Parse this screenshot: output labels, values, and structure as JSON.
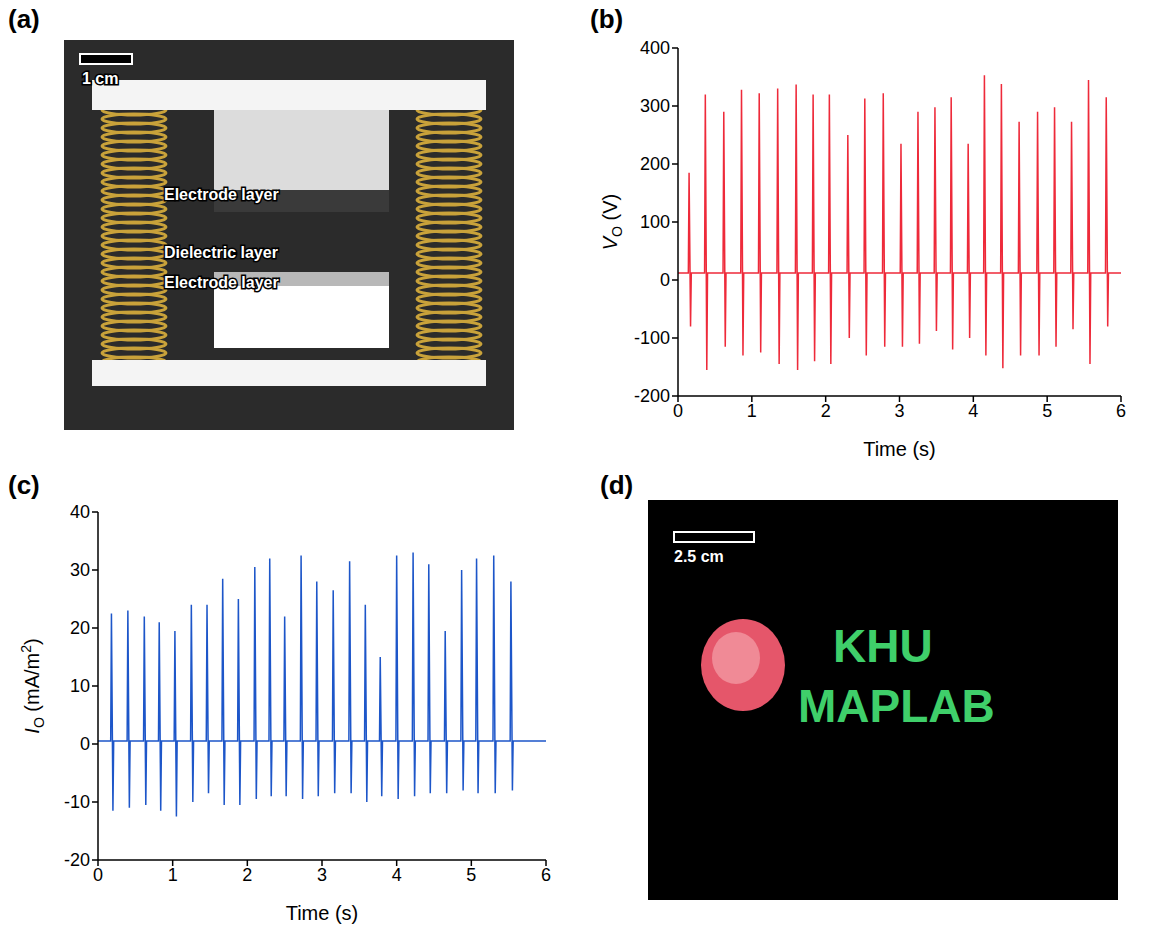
{
  "chart_data": [
    {
      "label": "(b)",
      "type": "line",
      "x_label": "Time (s)",
      "y_label": [
        "V",
        "O",
        " (V)"
      ],
      "xlim": [
        0,
        6
      ],
      "xticks": [
        0,
        1,
        2,
        3,
        4,
        5,
        6
      ],
      "ylim": [
        -200,
        400
      ],
      "yticks": [
        -200,
        -100,
        0,
        100,
        200,
        300,
        400
      ],
      "x": [
        0,
        0.14,
        0.15,
        0.17,
        0.18,
        0.36,
        0.37,
        0.39,
        0.4,
        0.61,
        0.62,
        0.64,
        0.65,
        0.85,
        0.86,
        0.88,
        0.89,
        1.09,
        1.1,
        1.12,
        1.13,
        1.34,
        1.35,
        1.37,
        1.38,
        1.59,
        1.6,
        1.62,
        1.63,
        1.82,
        1.83,
        1.85,
        1.86,
        2.04,
        2.05,
        2.07,
        2.08,
        2.29,
        2.3,
        2.32,
        2.33,
        2.52,
        2.53,
        2.55,
        2.56,
        2.77,
        2.78,
        2.8,
        2.81,
        3.01,
        3.02,
        3.04,
        3.05,
        3.24,
        3.25,
        3.27,
        3.28,
        3.47,
        3.48,
        3.5,
        3.51,
        3.69,
        3.7,
        3.72,
        3.73,
        3.92,
        3.93,
        3.95,
        3.96,
        4.14,
        4.15,
        4.17,
        4.18,
        4.37,
        4.38,
        4.4,
        4.41,
        4.61,
        4.62,
        4.64,
        4.65,
        4.86,
        4.87,
        4.89,
        4.9,
        5.09,
        5.1,
        5.12,
        5.13,
        5.32,
        5.33,
        5.35,
        5.36,
        5.55,
        5.56,
        5.58,
        5.59,
        5.79,
        5.8,
        5.82,
        5.83,
        6
      ],
      "series": [
        {
          "color": "#ee2a3a",
          "values": [
            12,
            12,
            185,
            -80,
            12,
            12,
            320,
            -155,
            12,
            12,
            290,
            -115,
            12,
            12,
            328,
            -130,
            12,
            12,
            322,
            -125,
            12,
            12,
            330,
            -145,
            12,
            12,
            337,
            -155,
            12,
            12,
            320,
            -140,
            12,
            12,
            320,
            -145,
            12,
            12,
            250,
            -100,
            12,
            12,
            313,
            -130,
            12,
            12,
            322,
            -115,
            12,
            12,
            235,
            -115,
            12,
            12,
            290,
            -110,
            12,
            12,
            298,
            -88,
            12,
            12,
            315,
            -120,
            12,
            12,
            235,
            -100,
            12,
            12,
            353,
            -130,
            12,
            12,
            338,
            -152,
            12,
            12,
            273,
            -130,
            12,
            12,
            290,
            -130,
            12,
            12,
            298,
            -115,
            12,
            12,
            273,
            -85,
            12,
            12,
            345,
            -145,
            12,
            12,
            315,
            -80,
            12,
            12
          ]
        }
      ]
    },
    {
      "label": "(c)",
      "type": "line",
      "x_label": "Time (s)",
      "y_label": [
        "I",
        "O",
        " (mA/m",
        "2",
        ")"
      ],
      "xlim": [
        0,
        6
      ],
      "xticks": [
        0,
        1,
        2,
        3,
        4,
        5,
        6
      ],
      "ylim": [
        -20,
        40
      ],
      "yticks": [
        -20,
        -10,
        0,
        10,
        20,
        30,
        40
      ],
      "x": [
        0,
        0.17,
        0.18,
        0.2,
        0.21,
        0.39,
        0.4,
        0.42,
        0.43,
        0.61,
        0.62,
        0.64,
        0.65,
        0.81,
        0.82,
        0.84,
        0.85,
        1.02,
        1.03,
        1.05,
        1.06,
        1.24,
        1.25,
        1.27,
        1.28,
        1.45,
        1.46,
        1.48,
        1.49,
        1.66,
        1.67,
        1.69,
        1.7,
        1.87,
        1.88,
        1.9,
        1.91,
        2.09,
        2.1,
        2.12,
        2.13,
        2.29,
        2.3,
        2.32,
        2.33,
        2.49,
        2.5,
        2.52,
        2.53,
        2.71,
        2.72,
        2.74,
        2.75,
        2.92,
        2.93,
        2.95,
        2.96,
        3.14,
        3.15,
        3.17,
        3.18,
        3.36,
        3.37,
        3.39,
        3.4,
        3.57,
        3.58,
        3.6,
        3.61,
        3.77,
        3.78,
        3.8,
        3.81,
        3.99,
        4,
        4.02,
        4.03,
        4.21,
        4.22,
        4.24,
        4.25,
        4.42,
        4.43,
        4.45,
        4.46,
        4.64,
        4.65,
        4.67,
        4.68,
        4.86,
        4.87,
        4.89,
        4.9,
        5.06,
        5.07,
        5.09,
        5.1,
        5.29,
        5.3,
        5.32,
        5.33,
        5.52,
        5.53,
        5.55,
        5.56,
        6
      ],
      "series": [
        {
          "color": "#1d56c9",
          "values": [
            0.5,
            0.5,
            22.5,
            -11.5,
            0.5,
            0.5,
            23,
            -11,
            0.5,
            0.5,
            22,
            -10.5,
            0.5,
            0.5,
            21,
            -11.5,
            0.5,
            0.5,
            19.5,
            -12.5,
            0.5,
            0.5,
            24,
            -10,
            0.5,
            0.5,
            24,
            -8.5,
            0.5,
            0.5,
            28.5,
            -10.5,
            0.5,
            0.5,
            25,
            -10.5,
            0.5,
            0.5,
            30.5,
            -9.5,
            0.5,
            0.5,
            32,
            -9,
            0.5,
            0.5,
            22,
            -9,
            0.5,
            0.5,
            32.5,
            -9.5,
            0.5,
            0.5,
            28,
            -9,
            0.5,
            0.5,
            26.5,
            -8.5,
            0.5,
            0.5,
            31.5,
            -8.5,
            0.5,
            0.5,
            24,
            -10,
            0.5,
            0.5,
            15,
            -9,
            0.5,
            0.5,
            32.5,
            -9.5,
            0.5,
            0.5,
            33,
            -9,
            0.5,
            0.5,
            31,
            -8.5,
            0.5,
            0.5,
            19.5,
            -8.5,
            0.5,
            0.5,
            30,
            -8,
            0.5,
            0.5,
            32,
            -8.5,
            0.5,
            0.5,
            32.5,
            -8.5,
            0.5,
            0.5,
            28,
            -8,
            0.5,
            0.5
          ]
        }
      ]
    }
  ],
  "photos": [
    {
      "label": "(a)",
      "scale_bar": "1 cm",
      "annotations": [
        "Electrode layer",
        "Dielectric layer",
        "Electrode layer"
      ]
    },
    {
      "label": "(d)",
      "scale_bar": "2.5 cm",
      "text_lines": [
        "KHU",
        "MAPLAB"
      ]
    }
  ]
}
